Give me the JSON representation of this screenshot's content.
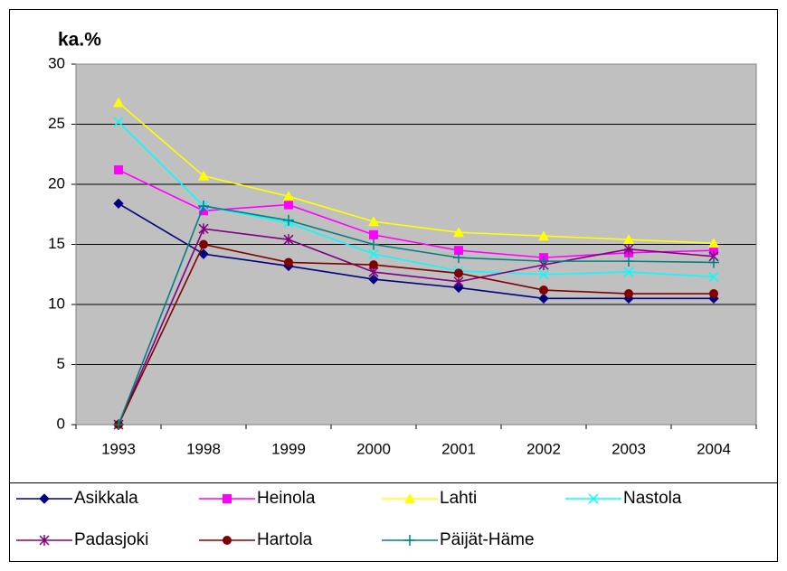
{
  "chart_data": {
    "type": "line",
    "title": "ka.%",
    "categories": [
      "1993",
      "1998",
      "1999",
      "2000",
      "2001",
      "2002",
      "2003",
      "2004"
    ],
    "ylim": [
      0,
      30
    ],
    "yticks": [
      0,
      5,
      10,
      15,
      20,
      25,
      30
    ],
    "grid": true,
    "plot_background": "#c0c0c0",
    "legend": "bottom",
    "series": [
      {
        "name": "Asikkala",
        "color": "#000080",
        "marker": "diamond",
        "values": [
          18.4,
          14.2,
          13.2,
          12.1,
          11.4,
          10.5,
          10.5,
          10.5
        ]
      },
      {
        "name": "Heinola",
        "color": "#ff00ff",
        "marker": "square",
        "values": [
          21.2,
          17.8,
          18.3,
          15.8,
          14.5,
          13.9,
          14.3,
          14.5
        ]
      },
      {
        "name": "Lahti",
        "color": "#ffff00",
        "marker": "triangle",
        "values": [
          26.8,
          20.7,
          19.0,
          16.9,
          16.0,
          15.7,
          15.4,
          15.1
        ]
      },
      {
        "name": "Nastola",
        "color": "#00ffff",
        "marker": "x",
        "values": [
          25.2,
          18.2,
          16.8,
          14.2,
          12.8,
          12.5,
          12.7,
          12.3
        ]
      },
      {
        "name": "Padasjoki",
        "color": "#800080",
        "marker": "star",
        "values": [
          0,
          16.3,
          15.4,
          12.7,
          11.9,
          13.3,
          14.6,
          14.0
        ]
      },
      {
        "name": "Hartola",
        "color": "#800000",
        "marker": "circle",
        "values": [
          0,
          15.0,
          13.5,
          13.3,
          12.6,
          11.2,
          10.9,
          10.9
        ]
      },
      {
        "name": "Päijät-Häme",
        "color": "#008080",
        "marker": "plus",
        "values": [
          0,
          18.2,
          17.0,
          15.0,
          13.9,
          13.6,
          13.6,
          13.5
        ]
      }
    ]
  }
}
